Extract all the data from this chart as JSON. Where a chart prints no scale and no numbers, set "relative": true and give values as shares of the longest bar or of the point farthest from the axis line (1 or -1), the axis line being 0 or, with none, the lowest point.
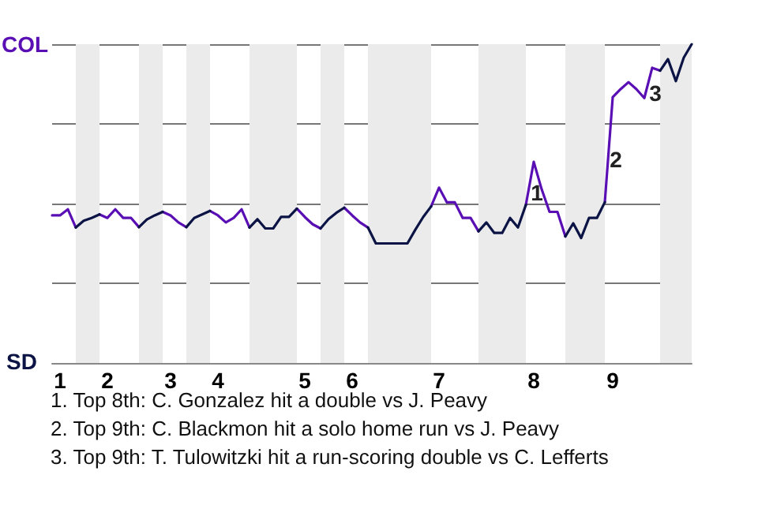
{
  "chart_data": {
    "type": "line",
    "relative": true,
    "categories": [
      null,
      "1",
      null,
      null,
      null,
      null,
      null,
      "2",
      null,
      null,
      null,
      null,
      null,
      null,
      null,
      "3",
      null,
      null,
      null,
      null,
      null,
      "4",
      null,
      null,
      null,
      null,
      null,
      null,
      null,
      null,
      null,
      null,
      "5",
      null,
      null,
      null,
      null,
      null,
      "6",
      null,
      null,
      null,
      null,
      null,
      null,
      null,
      null,
      null,
      null,
      "7",
      null,
      null,
      null,
      null,
      null,
      null,
      null,
      null,
      null,
      null,
      null,
      "8",
      null,
      null,
      null,
      null,
      null,
      null,
      null,
      null,
      null,
      "9",
      null,
      null,
      null,
      null,
      null,
      null,
      null,
      null,
      null,
      null
    ],
    "series": [
      {
        "color": "#5a0fb4",
        "values": [
          0.463,
          0.463,
          0.482,
          0.425,
          null,
          null,
          0.466,
          0.455,
          0.482,
          0.455,
          0.455,
          0.426,
          null,
          null,
          0.474,
          0.463,
          0.441,
          0.426,
          null,
          null,
          0.477,
          0.463,
          0.441,
          0.455,
          0.482,
          0.425,
          null,
          null,
          null,
          null,
          null,
          0.484,
          0.458,
          0.435,
          0.422,
          null,
          null,
          0.487,
          0.463,
          0.441,
          0.425,
          null,
          null,
          null,
          null,
          null,
          null,
          null,
          0.491,
          0.55,
          0.504,
          0.504,
          0.455,
          0.455,
          0.413,
          null,
          null,
          null,
          null,
          null,
          0.496,
          0.631,
          0.545,
          0.474,
          0.474,
          0.397,
          null,
          null,
          null,
          null,
          0.504,
          0.834,
          0.859,
          0.881,
          0.859,
          0.831,
          0.926,
          0.917,
          null,
          null,
          null,
          null
        ]
      },
      {
        "color": "#0c1445",
        "values": [
          null,
          null,
          null,
          0.425,
          0.446,
          0.455,
          0.466,
          null,
          null,
          null,
          null,
          0.426,
          0.45,
          0.463,
          0.474,
          null,
          null,
          0.426,
          0.455,
          0.466,
          0.477,
          null,
          null,
          null,
          null,
          0.425,
          0.451,
          0.422,
          0.422,
          0.458,
          0.458,
          0.484,
          null,
          null,
          0.422,
          0.451,
          0.471,
          0.487,
          null,
          null,
          0.425,
          0.375,
          0.375,
          0.375,
          0.375,
          0.375,
          0.418,
          0.458,
          0.491,
          null,
          null,
          null,
          null,
          null,
          0.413,
          0.441,
          0.408,
          0.408,
          0.455,
          0.425,
          0.496,
          null,
          null,
          null,
          null,
          0.397,
          0.438,
          0.392,
          0.455,
          0.455,
          0.504,
          null,
          null,
          null,
          null,
          null,
          null,
          0.917,
          0.953,
          0.884,
          0.958,
          1
        ]
      }
    ],
    "grid": "y",
    "marker": "none",
    "annotations": [
      "COL",
      "SD",
      "1",
      "2",
      "3",
      "1. Top 8th: C. Gonzalez hit a double vs J. Peavy",
      "2. Top 9th: C. Blackmon hit a solo home run vs J. Peavy",
      "3. Top 9th: T. Tulowitzki hit a run-scoring double vs C. Lefferts"
    ]
  }
}
